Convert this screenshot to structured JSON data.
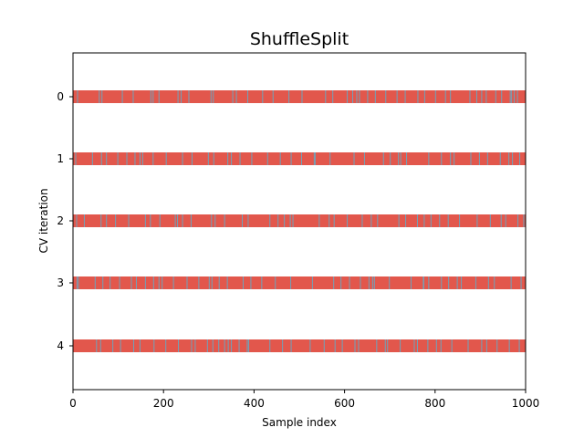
{
  "chart_data": {
    "type": "heatmap",
    "title": "ShuffleSplit",
    "xlabel": "Sample index",
    "ylabel": "CV iteration",
    "xlim": [
      0,
      1000
    ],
    "xticks": [
      0,
      200,
      400,
      600,
      800,
      1000
    ],
    "yticks": [
      0,
      1,
      2,
      3,
      4
    ],
    "colors": {
      "train": "#e2574c",
      "test": "#6fa3bb"
    },
    "n_samples": 1000,
    "iterations": [
      {
        "label": "0",
        "test_indices": [
          9,
          57,
          63,
          108,
          132,
          171,
          176,
          189,
          231,
          238,
          255,
          304,
          309,
          352,
          360,
          385,
          418,
          441,
          476,
          505,
          557,
          573,
          605,
          617,
          626,
          632,
          650,
          667,
          690,
          715,
          733,
          761,
          776,
          800,
          822,
          833,
          876,
          891,
          902,
          912,
          933,
          946,
          965,
          968,
          974,
          981
        ]
      },
      {
        "label": "1",
        "test_indices": [
          5,
          42,
          62,
          73,
          98,
          118,
          136,
          147,
          153,
          176,
          205,
          241,
          262,
          298,
          310,
          341,
          349,
          368,
          394,
          429,
          457,
          481,
          504,
          532,
          534,
          567,
          620,
          643,
          685,
          700,
          718,
          723,
          736,
          785,
          813,
          833,
          841,
          878,
          897,
          915,
          943,
          962,
          970,
          986
        ]
      },
      {
        "label": "2",
        "test_indices": [
          7,
          24,
          61,
          73,
          93,
          122,
          159,
          170,
          191,
          225,
          230,
          241,
          260,
          305,
          313,
          334,
          373,
          386,
          434,
          452,
          466,
          479,
          485,
          543,
          565,
          576,
          605,
          638,
          658,
          672,
          719,
          734,
          760,
          775,
          790,
          809,
          828,
          853,
          892,
          921,
          945,
          955,
          982,
          995
        ]
      },
      {
        "label": "3",
        "test_indices": [
          8,
          11,
          48,
          65,
          81,
          102,
          128,
          139,
          159,
          177,
          189,
          196,
          221,
          251,
          277,
          300,
          306,
          322,
          340,
          375,
          392,
          416,
          446,
          480,
          528,
          575,
          591,
          610,
          634,
          653,
          661,
          665,
          698,
          746,
          773,
          774,
          785,
          813,
          829,
          848,
          857,
          889,
          917,
          930,
          967,
          989
        ]
      },
      {
        "label": "4",
        "test_indices": [
          51,
          60,
          87,
          104,
          133,
          147,
          178,
          204,
          232,
          261,
          269,
          296,
          308,
          321,
          334,
          342,
          349,
          366,
          384,
          387,
          434,
          462,
          481,
          523,
          554,
          578,
          594,
          622,
          630,
          670,
          689,
          694,
          722,
          753,
          760,
          783,
          802,
          812,
          836,
          872,
          902,
          913,
          936,
          963,
          985
        ]
      }
    ]
  }
}
